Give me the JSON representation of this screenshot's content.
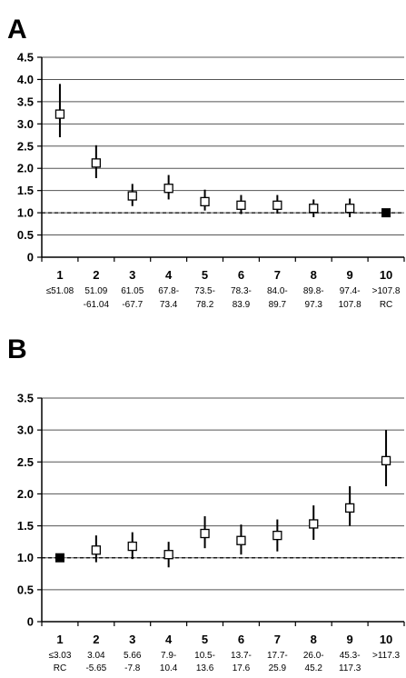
{
  "chart_data": [
    {
      "panel": "A",
      "type": "scatter",
      "ylim": [
        0,
        4.5
      ],
      "yticks": [
        "0",
        "0.5",
        "1.0",
        "1.5",
        "2.0",
        "2.5",
        "3.0",
        "3.5",
        "4.0",
        "4.5"
      ],
      "grid": true,
      "reference_line": 1.0,
      "categories": [
        {
          "num": "1",
          "line1": "≤51.08",
          "line2": ""
        },
        {
          "num": "2",
          "line1": "51.09",
          "line2": "-61.04"
        },
        {
          "num": "3",
          "line1": "61.05",
          "line2": "-67.7"
        },
        {
          "num": "4",
          "line1": "67.8-",
          "line2": "73.4"
        },
        {
          "num": "5",
          "line1": "73.5-",
          "line2": "78.2"
        },
        {
          "num": "6",
          "line1": "78.3-",
          "line2": "83.9"
        },
        {
          "num": "7",
          "line1": "84.0-",
          "line2": "89.7"
        },
        {
          "num": "8",
          "line1": "89.8-",
          "line2": "97.3"
        },
        {
          "num": "9",
          "line1": "97.4-",
          "line2": "107.8"
        },
        {
          "num": "10",
          "line1": ">107.8",
          "line2": "RC"
        }
      ],
      "points": [
        {
          "y": 3.22,
          "lo": 2.7,
          "hi": 3.9,
          "reference": false
        },
        {
          "y": 2.12,
          "lo": 1.78,
          "hi": 2.52,
          "reference": false
        },
        {
          "y": 1.38,
          "lo": 1.15,
          "hi": 1.65,
          "reference": false
        },
        {
          "y": 1.55,
          "lo": 1.3,
          "hi": 1.85,
          "reference": false
        },
        {
          "y": 1.25,
          "lo": 1.05,
          "hi": 1.52,
          "reference": false
        },
        {
          "y": 1.17,
          "lo": 0.97,
          "hi": 1.4,
          "reference": false
        },
        {
          "y": 1.17,
          "lo": 0.98,
          "hi": 1.4,
          "reference": false
        },
        {
          "y": 1.1,
          "lo": 0.9,
          "hi": 1.3,
          "reference": false
        },
        {
          "y": 1.1,
          "lo": 0.9,
          "hi": 1.32,
          "reference": false
        },
        {
          "y": 1.0,
          "lo": 1.0,
          "hi": 1.0,
          "reference": true
        }
      ]
    },
    {
      "panel": "B",
      "type": "scatter",
      "ylim": [
        0,
        3.5
      ],
      "yticks": [
        "0",
        "0.5",
        "1.0",
        "1.5",
        "2.0",
        "2.5",
        "3.0",
        "3.5"
      ],
      "grid": true,
      "reference_line": 1.0,
      "categories": [
        {
          "num": "1",
          "line1": "≤3.03",
          "line2": "RC"
        },
        {
          "num": "2",
          "line1": "3.04",
          "line2": "-5.65"
        },
        {
          "num": "3",
          "line1": "5.66",
          "line2": "-7.8"
        },
        {
          "num": "4",
          "line1": "7.9-",
          "line2": "10.4"
        },
        {
          "num": "5",
          "line1": "10.5-",
          "line2": "13.6"
        },
        {
          "num": "6",
          "line1": "13.7-",
          "line2": "17.6"
        },
        {
          "num": "7",
          "line1": "17.7-",
          "line2": "25.9"
        },
        {
          "num": "8",
          "line1": "26.0-",
          "line2": "45.2"
        },
        {
          "num": "9",
          "line1": "45.3-",
          "line2": "117.3"
        },
        {
          "num": "10",
          "line1": ">117.3",
          "line2": ""
        }
      ],
      "points": [
        {
          "y": 1.0,
          "lo": 1.0,
          "hi": 1.0,
          "reference": true
        },
        {
          "y": 1.12,
          "lo": 0.93,
          "hi": 1.35,
          "reference": false
        },
        {
          "y": 1.18,
          "lo": 0.98,
          "hi": 1.4,
          "reference": false
        },
        {
          "y": 1.05,
          "lo": 0.85,
          "hi": 1.25,
          "reference": false
        },
        {
          "y": 1.38,
          "lo": 1.15,
          "hi": 1.65,
          "reference": false
        },
        {
          "y": 1.27,
          "lo": 1.05,
          "hi": 1.52,
          "reference": false
        },
        {
          "y": 1.35,
          "lo": 1.1,
          "hi": 1.6,
          "reference": false
        },
        {
          "y": 1.53,
          "lo": 1.28,
          "hi": 1.82,
          "reference": false
        },
        {
          "y": 1.78,
          "lo": 1.5,
          "hi": 2.12,
          "reference": false
        },
        {
          "y": 2.52,
          "lo": 2.12,
          "hi": 3.0,
          "reference": false
        }
      ]
    }
  ],
  "panels": {
    "a": {
      "letter": "A"
    },
    "b": {
      "letter": "B"
    }
  }
}
